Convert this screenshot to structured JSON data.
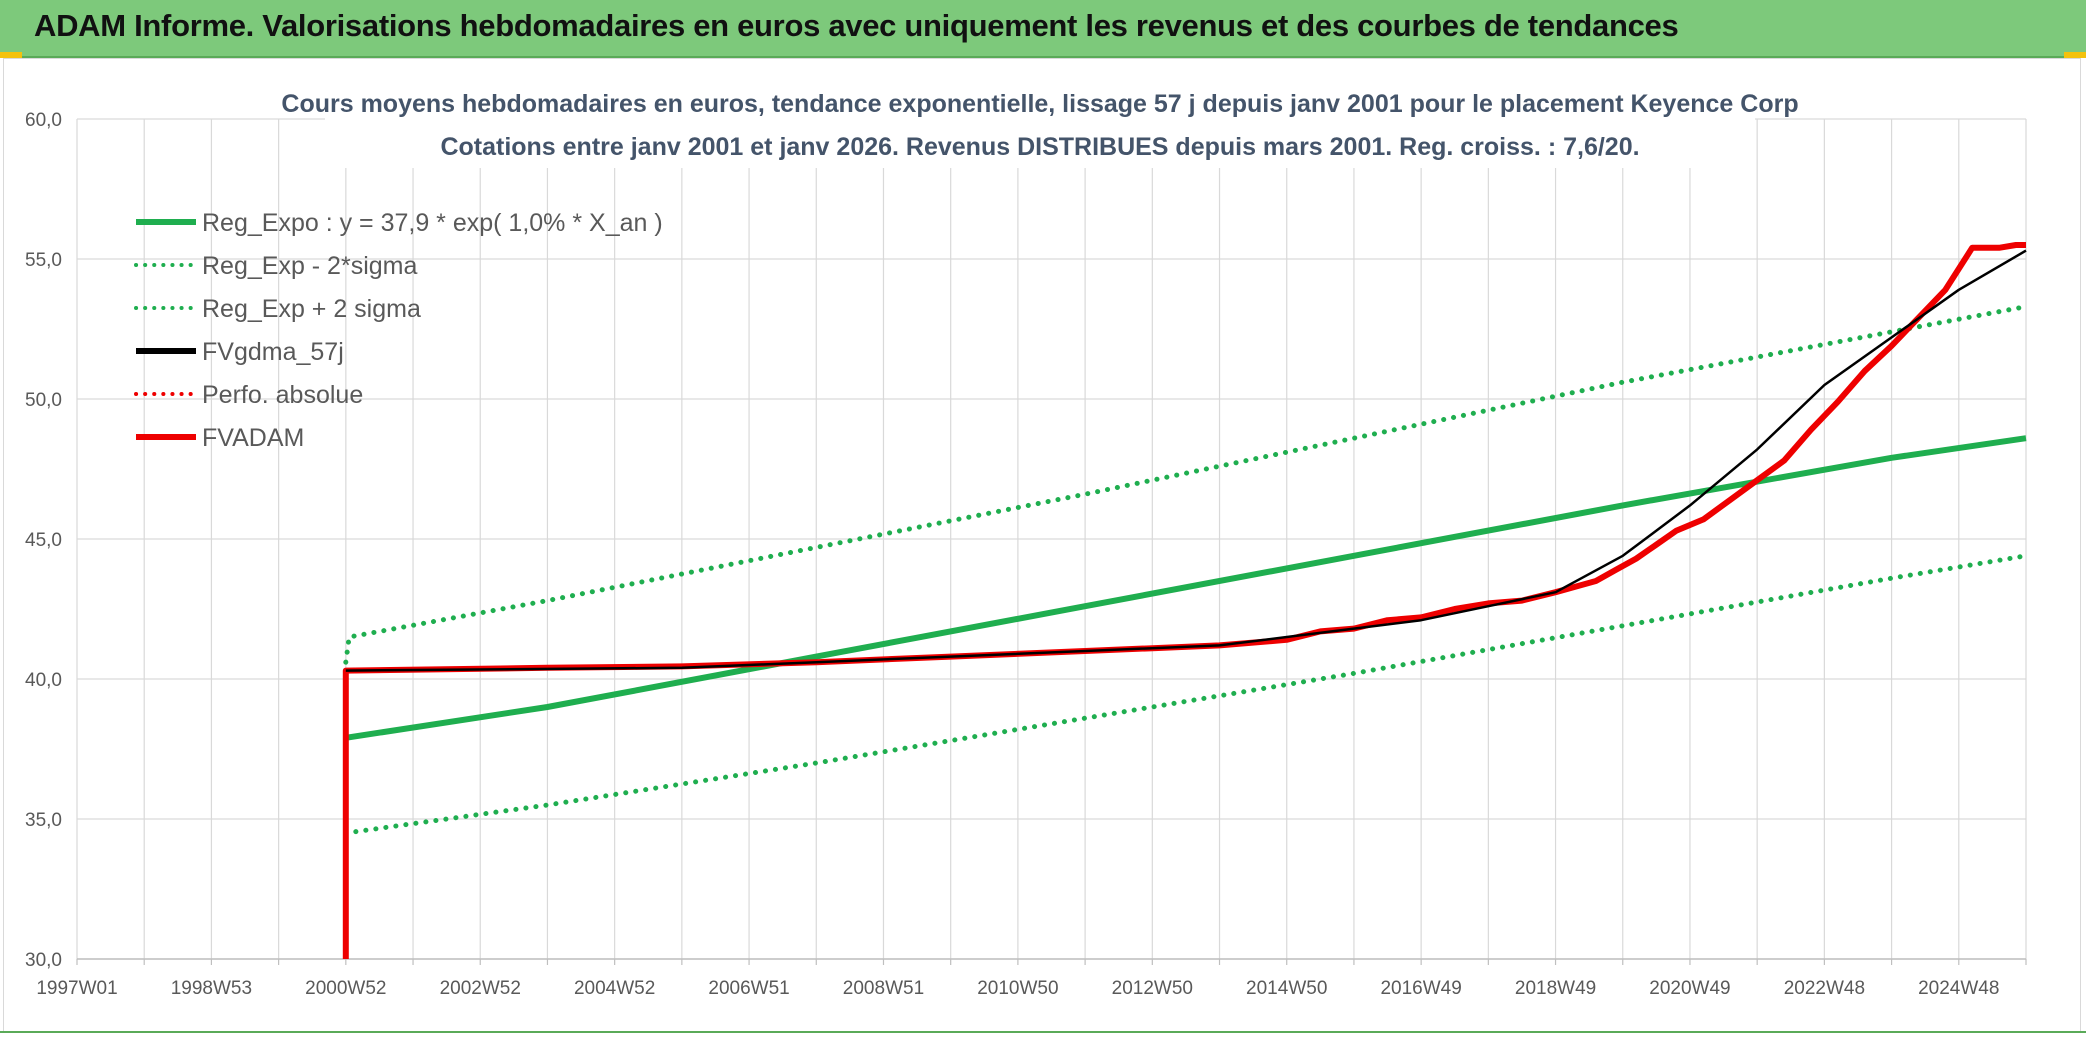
{
  "header": {
    "title": "ADAM Informe. Valorisations hebdomadaires en euros avec uniquement les revenus et des courbes de tendances"
  },
  "colors": {
    "banner": "#7dc97b",
    "green": "#1fae4f",
    "red": "#ee0000",
    "black": "#000000"
  },
  "chart_data": {
    "type": "line",
    "title": "Cours moyens hebdomadaires en euros, tendance exponentielle, lissage 57 j depuis janv 2001 pour le placement Keyence Corp",
    "subtitle": "Cotations entre janv 2001 et janv 2026. Revenus DISTRIBUES depuis mars 2001. Reg. croiss. : 7,6/20.",
    "xlabel": "",
    "ylabel": "",
    "ylim": [
      30,
      60
    ],
    "xlim": [
      1997.0,
      2026.0
    ],
    "yticks": [
      "30,0",
      "35,0",
      "40,0",
      "45,0",
      "50,0",
      "55,0",
      "60,0"
    ],
    "xticks": [
      "1997W01",
      "1998W53",
      "2000W52",
      "2002W52",
      "2004W52",
      "2006W51",
      "2008W51",
      "2010W50",
      "2012W50",
      "2014W50",
      "2016W49",
      "2018W49",
      "2020W49",
      "2022W48",
      "2024W48"
    ],
    "grid": true,
    "legend_position": "top-left",
    "legend": [
      {
        "label": "Reg_Expo : y = 37,9 * exp( 1,0% *  X_an )",
        "color": "#1fae4f",
        "style": "solid"
      },
      {
        "label": "Reg_Exp - 2*sigma",
        "color": "#1fae4f",
        "style": "dotted"
      },
      {
        "label": "Reg_Exp + 2 sigma",
        "color": "#1fae4f",
        "style": "dotted"
      },
      {
        "label": "FVgdma_57j",
        "color": "#000000",
        "style": "solid"
      },
      {
        "label": "Perfo. absolue",
        "color": "#ee0000",
        "style": "dotted"
      },
      {
        "label": "FVADAM",
        "color": "#ee0000",
        "style": "solid"
      }
    ],
    "series": [
      {
        "name": "Reg_Expo : y = 37,9 * exp( 1,0% *  X_an )",
        "x": [
          2001.0,
          2004.0,
          2008.0,
          2012.0,
          2016.0,
          2020.0,
          2024.0,
          2026.0
        ],
        "y": [
          37.9,
          39.0,
          40.8,
          42.6,
          44.4,
          46.2,
          47.9,
          48.6
        ]
      },
      {
        "name": "Reg_Exp - 2*sigma",
        "x": [
          2001.0,
          2004.0,
          2008.0,
          2012.0,
          2016.0,
          2020.0,
          2024.0,
          2026.0
        ],
        "y": [
          34.5,
          35.5,
          37.0,
          38.6,
          40.2,
          41.9,
          43.6,
          44.4
        ]
      },
      {
        "name": "Reg_Exp + 2 sigma",
        "x": [
          2001.0,
          2001.05,
          2004.0,
          2008.0,
          2012.0,
          2016.0,
          2020.0,
          2024.0,
          2026.0
        ],
        "y": [
          40.6,
          41.5,
          42.8,
          44.7,
          46.6,
          48.6,
          50.6,
          52.4,
          53.3
        ]
      },
      {
        "name": "FVgdma_57j",
        "x": [
          2001.0,
          2006.0,
          2008.0,
          2010.0,
          2012.0,
          2014.0,
          2016.0,
          2017.0,
          2018.0,
          2019.0,
          2020.0,
          2021.0,
          2022.0,
          2023.0,
          2024.0,
          2025.0,
          2026.0
        ],
        "y": [
          40.3,
          40.4,
          40.6,
          40.8,
          41.0,
          41.2,
          41.8,
          42.1,
          42.6,
          43.1,
          44.4,
          46.2,
          48.2,
          50.5,
          52.2,
          53.9,
          55.3
        ]
      },
      {
        "name": "Perfo. absolue",
        "x": [],
        "y": []
      },
      {
        "name": "FVADAM",
        "x": [
          2001.0,
          2001.0,
          2001.0,
          2004.0,
          2006.0,
          2008.0,
          2010.0,
          2012.0,
          2013.0,
          2014.0,
          2015.0,
          2015.5,
          2016.0,
          2016.5,
          2017.0,
          2017.5,
          2018.0,
          2018.5,
          2019.0,
          2019.3,
          2019.6,
          2019.9,
          2020.2,
          2020.5,
          2020.8,
          2021.2,
          2021.6,
          2022.0,
          2022.4,
          2022.8,
          2023.2,
          2023.6,
          2024.0,
          2024.4,
          2024.8,
          2025.2,
          2025.6,
          2025.85,
          2026.0
        ],
        "y": [
          30.0,
          40.2,
          40.3,
          40.4,
          40.45,
          40.6,
          40.8,
          41.0,
          41.1,
          41.2,
          41.4,
          41.7,
          41.8,
          42.1,
          42.2,
          42.5,
          42.7,
          42.8,
          43.1,
          43.3,
          43.5,
          43.9,
          44.3,
          44.8,
          45.3,
          45.7,
          46.4,
          47.1,
          47.8,
          48.9,
          49.9,
          51.0,
          51.9,
          52.9,
          53.9,
          55.4,
          55.4,
          55.5,
          55.5
        ]
      }
    ]
  }
}
